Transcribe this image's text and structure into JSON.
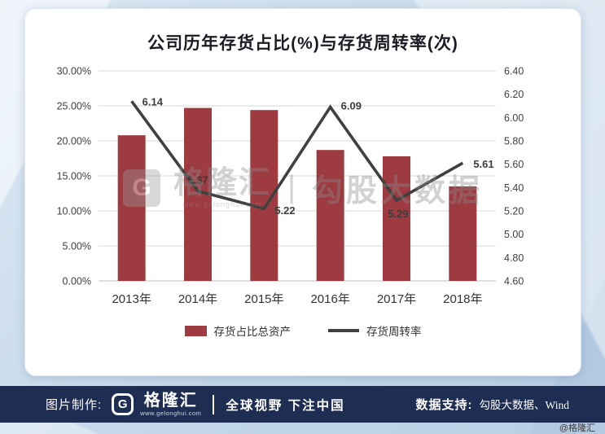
{
  "chart": {
    "title": "公司历年存货占比(%)与存货周转率(次)"
  },
  "watermark": {
    "logo_letter": "G",
    "brand": "格隆汇",
    "site": "www.gelonghui.com",
    "divider": "|",
    "partner": "勾股大数据"
  },
  "chart_data": {
    "type": "bar+line",
    "categories": [
      "2013年",
      "2014年",
      "2015年",
      "2016年",
      "2017年",
      "2018年"
    ],
    "series": [
      {
        "name": "存货占比总资产",
        "type": "bar",
        "axis": "left",
        "values": [
          20.8,
          24.7,
          24.4,
          18.7,
          17.8,
          13.5
        ],
        "color": "#9e3b41"
      },
      {
        "name": "存货周转率",
        "type": "line",
        "axis": "right",
        "values": [
          6.14,
          5.37,
          5.22,
          6.09,
          5.29,
          5.61
        ],
        "labels": [
          "6.14",
          "5.37",
          "5.22",
          "6.09",
          "5.29",
          "5.61"
        ],
        "color": "#404040"
      }
    ],
    "left_axis": {
      "min": 0,
      "max": 30,
      "step": 5,
      "tick_labels": [
        "0.00%",
        "5.00%",
        "10.00%",
        "15.00%",
        "20.00%",
        "25.00%",
        "30.00%"
      ]
    },
    "right_axis": {
      "min": 4.6,
      "max": 6.4,
      "step": 0.2,
      "tick_labels": [
        "4.60",
        "4.80",
        "5.00",
        "5.20",
        "5.40",
        "5.60",
        "5.80",
        "6.00",
        "6.20",
        "6.40"
      ]
    },
    "grid": true,
    "legend_position": "bottom"
  },
  "footer": {
    "made_by_label": "图片制作:",
    "logo_letter": "G",
    "logo_text": "格隆汇",
    "logo_site": "www.gelonghui.com",
    "slogan": "全球视野 下注中国",
    "data_support_label": "数据支持:",
    "data_support_value": "勾股大数据、Wind"
  },
  "corner_tag": "@格隆汇"
}
